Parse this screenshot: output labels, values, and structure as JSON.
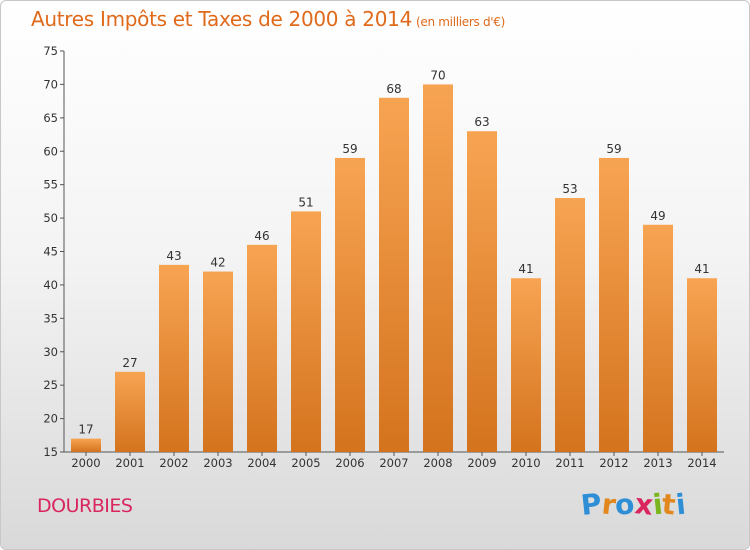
{
  "title": "Autres Impôts et Taxes de 2000 à 2014",
  "unit": "(en milliers d'€)",
  "commune": "DOURBIES",
  "logo": {
    "letters": [
      "P",
      "r",
      "o",
      "x",
      "i",
      "t",
      "i"
    ],
    "colors": [
      "#2f8fd6",
      "#e2871d",
      "#2f8fd6",
      "#d9265f",
      "#7ab51d",
      "#e2871d",
      "#2f8fd6"
    ]
  },
  "colors": {
    "bar_top": "#f7a452",
    "bar_bottom": "#d4731e",
    "title": "#e06a1b",
    "commune": "#d9265f"
  },
  "chart_data": {
    "type": "bar",
    "categories": [
      "2000",
      "2001",
      "2002",
      "2003",
      "2004",
      "2005",
      "2006",
      "2007",
      "2008",
      "2009",
      "2010",
      "2011",
      "2012",
      "2013",
      "2014"
    ],
    "values": [
      17,
      27,
      43,
      42,
      46,
      51,
      59,
      68,
      70,
      63,
      41,
      53,
      59,
      49,
      41
    ],
    "ylim": [
      15,
      75
    ],
    "yticks": [
      15,
      20,
      25,
      30,
      35,
      40,
      45,
      50,
      55,
      60,
      65,
      70,
      75
    ],
    "grid": false
  }
}
